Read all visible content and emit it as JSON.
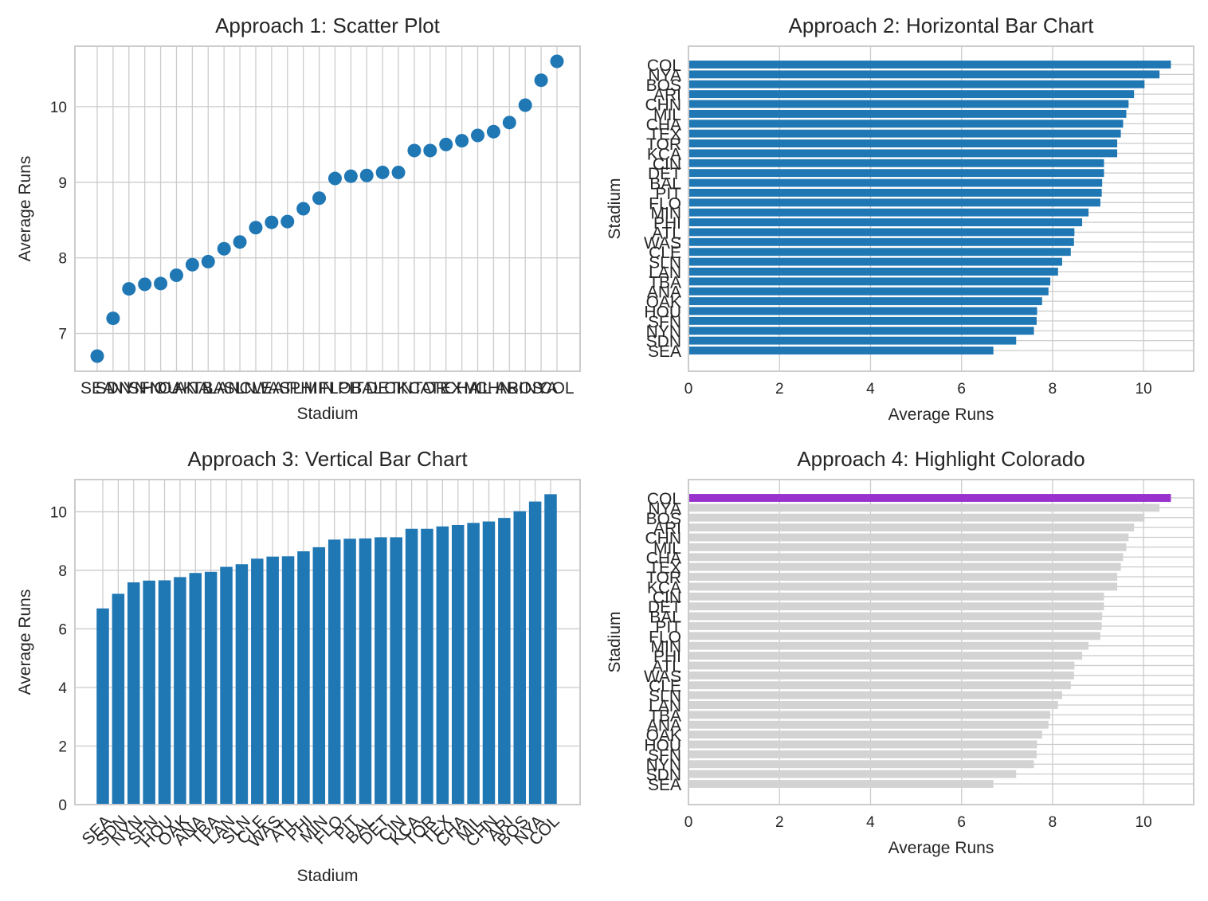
{
  "colors": {
    "bar": "#1f77b4",
    "highlight": "#9932cc",
    "muted": "#d3d3d3",
    "grid": "#cccccc",
    "spine": "#cccccc",
    "text": "#262626"
  },
  "chart_data": [
    {
      "type": "scatter",
      "title": "Approach 1: Scatter Plot",
      "xlabel": "Stadium",
      "ylabel": "Average Runs",
      "ylim": [
        6.5,
        10.8
      ],
      "yticks": [
        7,
        8,
        9,
        10
      ],
      "categories": [
        "SEA",
        "SDN",
        "NYN",
        "SFN",
        "HOU",
        "OAK",
        "ANA",
        "TBA",
        "LAN",
        "SLN",
        "CLE",
        "WAS",
        "ATL",
        "PHI",
        "MIN",
        "FLO",
        "PIT",
        "BAL",
        "DET",
        "CIN",
        "KCA",
        "TOR",
        "TEX",
        "CHA",
        "MIL",
        "CHN",
        "ARI",
        "BOS",
        "NYA",
        "COL"
      ],
      "values": [
        6.7,
        7.2,
        7.59,
        7.65,
        7.66,
        7.77,
        7.91,
        7.95,
        8.12,
        8.21,
        8.4,
        8.47,
        8.48,
        8.65,
        8.79,
        9.05,
        9.08,
        9.09,
        9.13,
        9.13,
        9.42,
        9.42,
        9.5,
        9.55,
        9.62,
        9.67,
        9.79,
        10.02,
        10.35,
        10.6
      ],
      "grid": true
    },
    {
      "type": "bar",
      "orientation": "horizontal",
      "title": "Approach 2: Horizontal Bar Chart",
      "xlabel": "Average Runs",
      "ylabel": "Stadium",
      "xlim": [
        0,
        11.1
      ],
      "xticks": [
        0,
        2,
        4,
        6,
        8,
        10
      ],
      "categories": [
        "SEA",
        "SDN",
        "NYN",
        "SFN",
        "HOU",
        "OAK",
        "ANA",
        "TBA",
        "LAN",
        "SLN",
        "CLE",
        "WAS",
        "ATL",
        "PHI",
        "MIN",
        "FLO",
        "PIT",
        "BAL",
        "DET",
        "CIN",
        "KCA",
        "TOR",
        "TEX",
        "CHA",
        "MIL",
        "CHN",
        "ARI",
        "BOS",
        "NYA",
        "COL"
      ],
      "values": [
        6.7,
        7.2,
        7.59,
        7.65,
        7.66,
        7.77,
        7.91,
        7.95,
        8.12,
        8.21,
        8.4,
        8.47,
        8.48,
        8.65,
        8.79,
        9.05,
        9.08,
        9.09,
        9.13,
        9.13,
        9.42,
        9.42,
        9.5,
        9.55,
        9.62,
        9.67,
        9.79,
        10.02,
        10.35,
        10.6
      ],
      "grid": true
    },
    {
      "type": "bar",
      "orientation": "vertical",
      "title": "Approach 3: Vertical Bar Chart",
      "xlabel": "Stadium",
      "ylabel": "Average Runs",
      "ylim": [
        0,
        11.1
      ],
      "yticks": [
        0,
        2,
        4,
        6,
        8,
        10
      ],
      "categories": [
        "SEA",
        "SDN",
        "NYN",
        "SFN",
        "HOU",
        "OAK",
        "ANA",
        "TBA",
        "LAN",
        "SLN",
        "CLE",
        "WAS",
        "ATL",
        "PHI",
        "MIN",
        "FLO",
        "PIT",
        "BAL",
        "DET",
        "CIN",
        "KCA",
        "TOR",
        "TEX",
        "CHA",
        "MIL",
        "CHN",
        "ARI",
        "BOS",
        "NYA",
        "COL"
      ],
      "values": [
        6.7,
        7.2,
        7.59,
        7.65,
        7.66,
        7.77,
        7.91,
        7.95,
        8.12,
        8.21,
        8.4,
        8.47,
        8.48,
        8.65,
        8.79,
        9.05,
        9.08,
        9.09,
        9.13,
        9.13,
        9.42,
        9.42,
        9.5,
        9.55,
        9.62,
        9.67,
        9.79,
        10.02,
        10.35,
        10.6
      ],
      "grid": true
    },
    {
      "type": "bar",
      "orientation": "horizontal",
      "title": "Approach 4: Highlight Colorado",
      "xlabel": "Average Runs",
      "ylabel": "Stadium",
      "xlim": [
        0,
        11.1
      ],
      "xticks": [
        0,
        2,
        4,
        6,
        8,
        10
      ],
      "highlight": "COL",
      "categories": [
        "SEA",
        "SDN",
        "NYN",
        "SFN",
        "HOU",
        "OAK",
        "ANA",
        "TBA",
        "LAN",
        "SLN",
        "CLE",
        "WAS",
        "ATL",
        "PHI",
        "MIN",
        "FLO",
        "PIT",
        "BAL",
        "DET",
        "CIN",
        "KCA",
        "TOR",
        "TEX",
        "CHA",
        "MIL",
        "CHN",
        "ARI",
        "BOS",
        "NYA",
        "COL"
      ],
      "values": [
        6.7,
        7.2,
        7.59,
        7.65,
        7.66,
        7.77,
        7.91,
        7.95,
        8.12,
        8.21,
        8.4,
        8.47,
        8.48,
        8.65,
        8.79,
        9.05,
        9.08,
        9.09,
        9.13,
        9.13,
        9.42,
        9.42,
        9.5,
        9.55,
        9.62,
        9.67,
        9.79,
        10.02,
        10.35,
        10.6
      ],
      "grid": true
    }
  ]
}
